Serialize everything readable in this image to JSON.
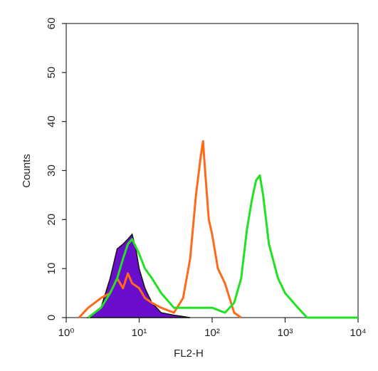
{
  "chart_data": {
    "type": "histogram-line",
    "xlabel": "FL2-H",
    "ylabel": "Counts",
    "xscale": "log",
    "xlim": [
      1,
      10000
    ],
    "ylim": [
      0,
      60
    ],
    "xticks": [
      {
        "value": 1,
        "label": "10⁰"
      },
      {
        "value": 10,
        "label": "10¹"
      },
      {
        "value": 100,
        "label": "10²"
      },
      {
        "value": 1000,
        "label": "10³"
      },
      {
        "value": 10000,
        "label": "10⁴"
      }
    ],
    "yticks": [
      0,
      10,
      20,
      30,
      40,
      50,
      60
    ],
    "series": [
      {
        "color": "#6a0dcc",
        "fill": true,
        "x": [
          2,
          3,
          4,
          5,
          6,
          7,
          8,
          9,
          10,
          12,
          15,
          20,
          30,
          50
        ],
        "values": [
          0,
          2,
          8,
          14,
          15,
          16,
          17,
          14,
          10,
          6,
          3,
          1,
          0.5,
          0
        ]
      },
      {
        "color": "#ff6a1a",
        "fill": false,
        "x": [
          1.5,
          2,
          3,
          4,
          5,
          6,
          7,
          8,
          10,
          12,
          15,
          20,
          30,
          40,
          50,
          60,
          70,
          75,
          80,
          90,
          100,
          120,
          150,
          200,
          250
        ],
        "values": [
          0,
          2,
          4,
          5,
          8,
          6,
          9,
          7,
          6,
          4,
          3,
          2,
          1,
          4,
          12,
          25,
          33,
          36,
          30,
          20,
          17,
          10,
          7,
          1,
          0
        ]
      },
      {
        "color": "#22e022",
        "fill": false,
        "x": [
          2,
          3,
          4,
          5,
          6,
          7,
          8,
          10,
          12,
          15,
          20,
          30,
          50,
          100,
          150,
          200,
          250,
          300,
          350,
          400,
          450,
          500,
          600,
          800,
          1000,
          1500,
          2000,
          10000
        ],
        "values": [
          0,
          2,
          5,
          8,
          12,
          15,
          16,
          13,
          10,
          8,
          5,
          2,
          2,
          2,
          1,
          3,
          8,
          18,
          24,
          28,
          29,
          25,
          15,
          8,
          5,
          2,
          0,
          0
        ]
      }
    ]
  }
}
